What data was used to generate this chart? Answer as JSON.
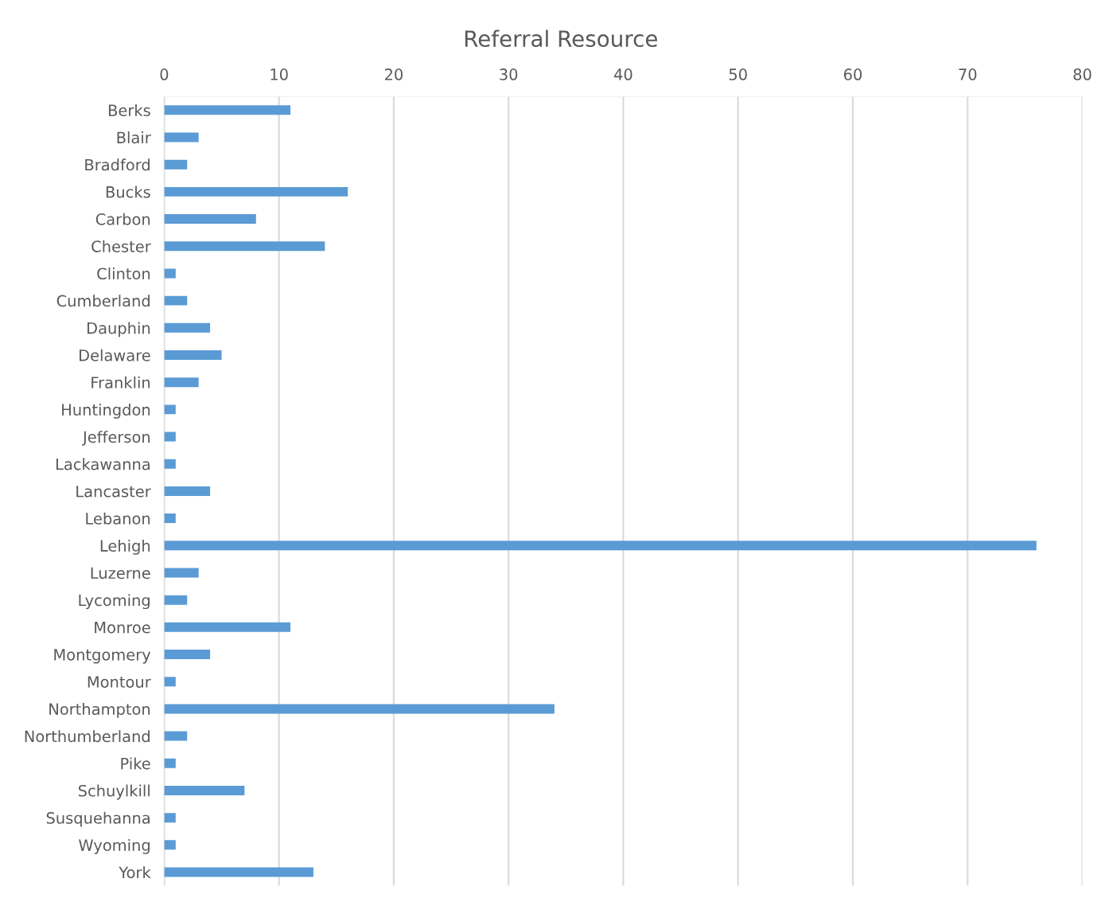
{
  "chart_data": {
    "type": "bar",
    "orientation": "horizontal",
    "title": "Referral Resource",
    "categories": [
      "Berks",
      "Blair",
      "Bradford",
      "Bucks",
      "Carbon",
      "Chester",
      "Clinton",
      "Cumberland",
      "Dauphin",
      "Delaware",
      "Franklin",
      "Huntingdon",
      "Jefferson",
      "Lackawanna",
      "Lancaster",
      "Lebanon",
      "Lehigh",
      "Luzerne",
      "Lycoming",
      "Monroe",
      "Montgomery",
      "Montour",
      "Northampton",
      "Northumberland",
      "Pike",
      "Schuylkill",
      "Susquehanna",
      "Wyoming",
      "York"
    ],
    "values": [
      11,
      3,
      2,
      16,
      8,
      14,
      1,
      2,
      4,
      5,
      3,
      1,
      1,
      1,
      4,
      1,
      76,
      3,
      2,
      11,
      4,
      1,
      34,
      2,
      1,
      7,
      1,
      1,
      13
    ],
    "color": "#5b9bd5",
    "xlim": [
      0,
      80
    ],
    "xticks": [
      0,
      10,
      20,
      30,
      40,
      50,
      60,
      70,
      80
    ],
    "grid": "x",
    "legend": false
  }
}
